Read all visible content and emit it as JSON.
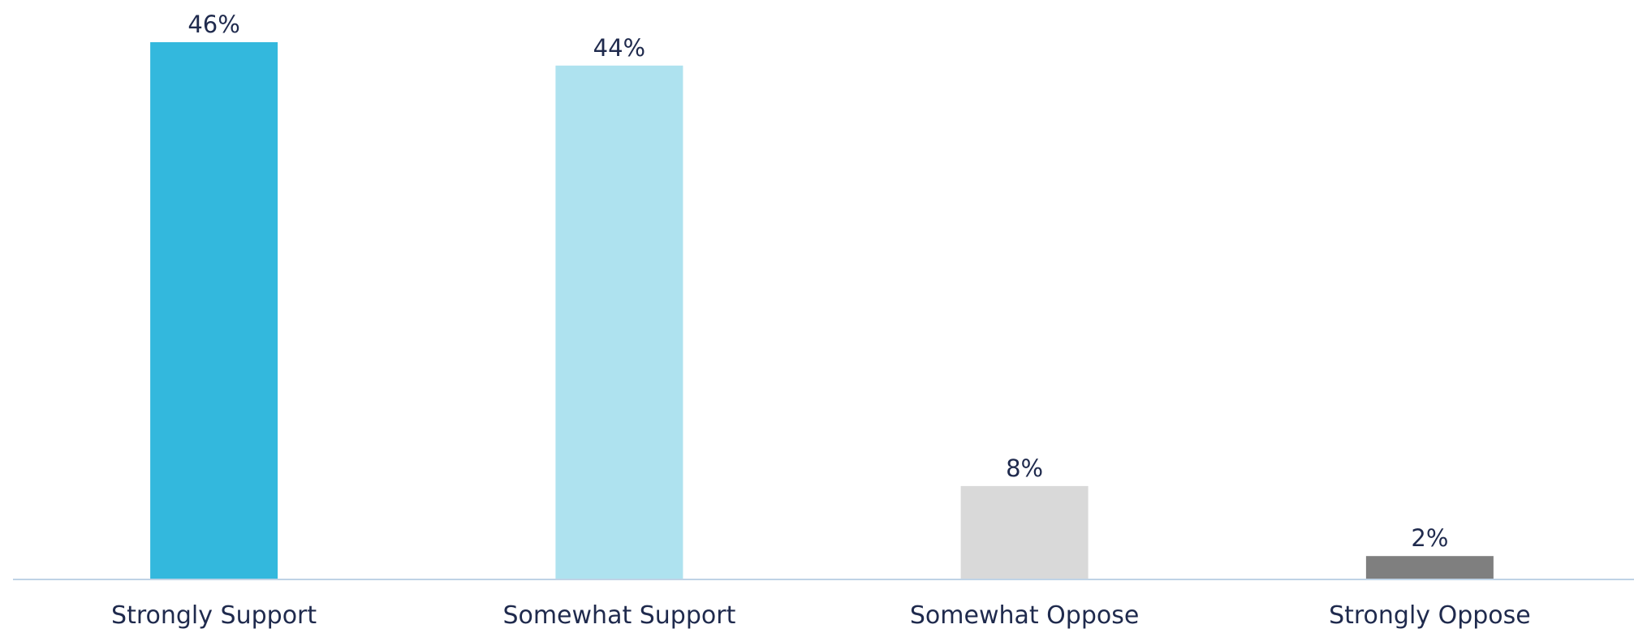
{
  "chart_data": {
    "type": "bar",
    "categories": [
      "Strongly Support",
      "Somewhat Support",
      "Somewhat Oppose",
      "Strongly Oppose"
    ],
    "values": [
      46,
      44,
      8,
      2
    ],
    "data_labels": [
      "46%",
      "44%",
      "8%",
      "2%"
    ],
    "colors": [
      "#33B8DD",
      "#AEE2EF",
      "#D9D9D9",
      "#7F7F7F"
    ],
    "label_color": "#1F2A4D",
    "axis_color": "#BFD3E6",
    "ylim": [
      0,
      46
    ],
    "grid": false,
    "legend": "none",
    "title": "",
    "xlabel": "",
    "ylabel": ""
  }
}
